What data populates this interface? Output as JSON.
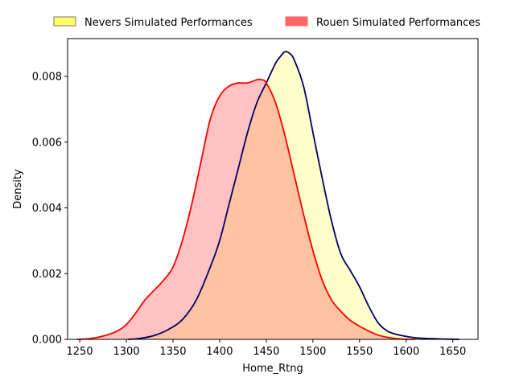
{
  "chart_data": {
    "type": "area",
    "xlabel": "Home_Rtng",
    "ylabel": "Density",
    "xlim": [
      1237,
      1677
    ],
    "ylim": [
      0,
      0.00915
    ],
    "xticks": [
      1250,
      1300,
      1350,
      1400,
      1450,
      1500,
      1550,
      1600,
      1650
    ],
    "xtick_labels": [
      "1250",
      "1300",
      "1350",
      "1400",
      "1450",
      "1500",
      "1550",
      "1600",
      "1650"
    ],
    "yticks": [
      0,
      0.002,
      0.004,
      0.006,
      0.008
    ],
    "ytick_labels": [
      "0.000",
      "0.002",
      "0.004",
      "0.006",
      "0.008"
    ],
    "grid": false,
    "legend_position": "top",
    "series": [
      {
        "name": "Nevers Simulated Performances",
        "line_color": "#000066",
        "fill_color": "#ffff66",
        "fill_alpha": 0.35,
        "x": [
          1302,
          1315,
          1330,
          1345,
          1360,
          1375,
          1390,
          1400,
          1410,
          1420,
          1430,
          1440,
          1450,
          1460,
          1465,
          1470,
          1475,
          1480,
          1490,
          1500,
          1510,
          1520,
          1530,
          1540,
          1550,
          1560,
          1570,
          1580,
          1590,
          1600,
          1610,
          1620,
          1630,
          1640,
          1650,
          1657
        ],
        "y": [
          0.0,
          3e-05,
          0.00012,
          0.0003,
          0.0006,
          0.0012,
          0.0022,
          0.003,
          0.0041,
          0.0052,
          0.0063,
          0.0072,
          0.0078,
          0.0084,
          0.0086,
          0.00875,
          0.0087,
          0.0085,
          0.0077,
          0.0063,
          0.0049,
          0.0036,
          0.0026,
          0.0021,
          0.0016,
          0.001,
          0.0005,
          0.00025,
          0.00015,
          9e-05,
          5e-05,
          3e-05,
          2e-05,
          1e-05,
          5e-06,
          0.0
        ]
      },
      {
        "name": "Rouen Simulated Performances",
        "line_color": "#ff0000",
        "fill_color": "#ff6666",
        "fill_alpha": 0.4,
        "x": [
          1247,
          1260,
          1275,
          1290,
          1300,
          1310,
          1320,
          1330,
          1340,
          1350,
          1360,
          1370,
          1380,
          1390,
          1400,
          1410,
          1420,
          1430,
          1440,
          1445,
          1450,
          1460,
          1470,
          1480,
          1490,
          1500,
          1510,
          1520,
          1530,
          1540,
          1550,
          1560,
          1570,
          1580,
          1590,
          1600,
          1610
        ],
        "y": [
          0.0,
          2e-05,
          0.0001,
          0.00025,
          0.00045,
          0.0008,
          0.0012,
          0.0015,
          0.0018,
          0.0022,
          0.003,
          0.0041,
          0.0054,
          0.0067,
          0.0074,
          0.0077,
          0.0078,
          0.0078,
          0.0079,
          0.0079,
          0.0078,
          0.0072,
          0.0062,
          0.005,
          0.0038,
          0.0027,
          0.0018,
          0.0012,
          0.00085,
          0.00058,
          0.0004,
          0.00025,
          0.00013,
          6e-05,
          2e-05,
          5e-06,
          0.0
        ]
      }
    ]
  }
}
